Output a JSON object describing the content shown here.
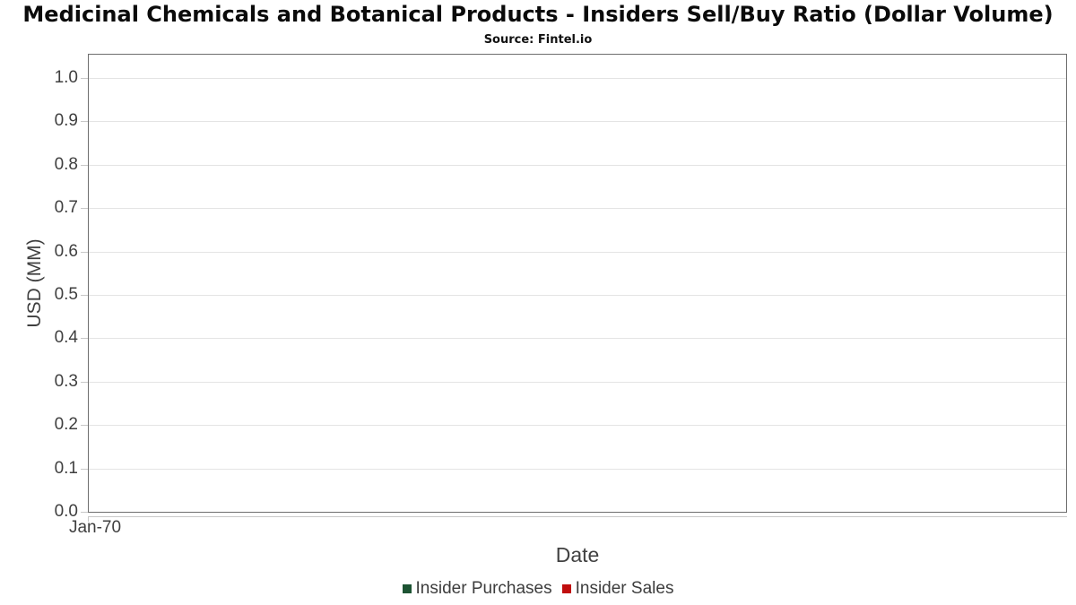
{
  "chart_data": {
    "type": "bar",
    "title": "Medicinal Chemicals and Botanical Products - Insiders Sell/Buy Ratio (Dollar Volume)",
    "subtitle": "Source: Fintel.io",
    "xlabel": "Date",
    "ylabel": "USD (MM)",
    "x_tick_labels": [
      "Jan-70"
    ],
    "yticks": [
      0.0,
      0.1,
      0.2,
      0.3,
      0.4,
      0.5,
      0.6,
      0.7,
      0.8,
      0.9,
      1.0
    ],
    "ytick_labels": [
      "0.0",
      "0.1",
      "0.2",
      "0.3",
      "0.4",
      "0.5",
      "0.6",
      "0.7",
      "0.8",
      "0.9",
      "1.0"
    ],
    "ylim": [
      0,
      1.0535
    ],
    "grid": true,
    "legend_position": "bottom",
    "series": [
      {
        "name": "Insider Purchases",
        "color": "#1d5433",
        "values": []
      },
      {
        "name": "Insider Sales",
        "color": "#c00d0d",
        "values": []
      }
    ]
  }
}
